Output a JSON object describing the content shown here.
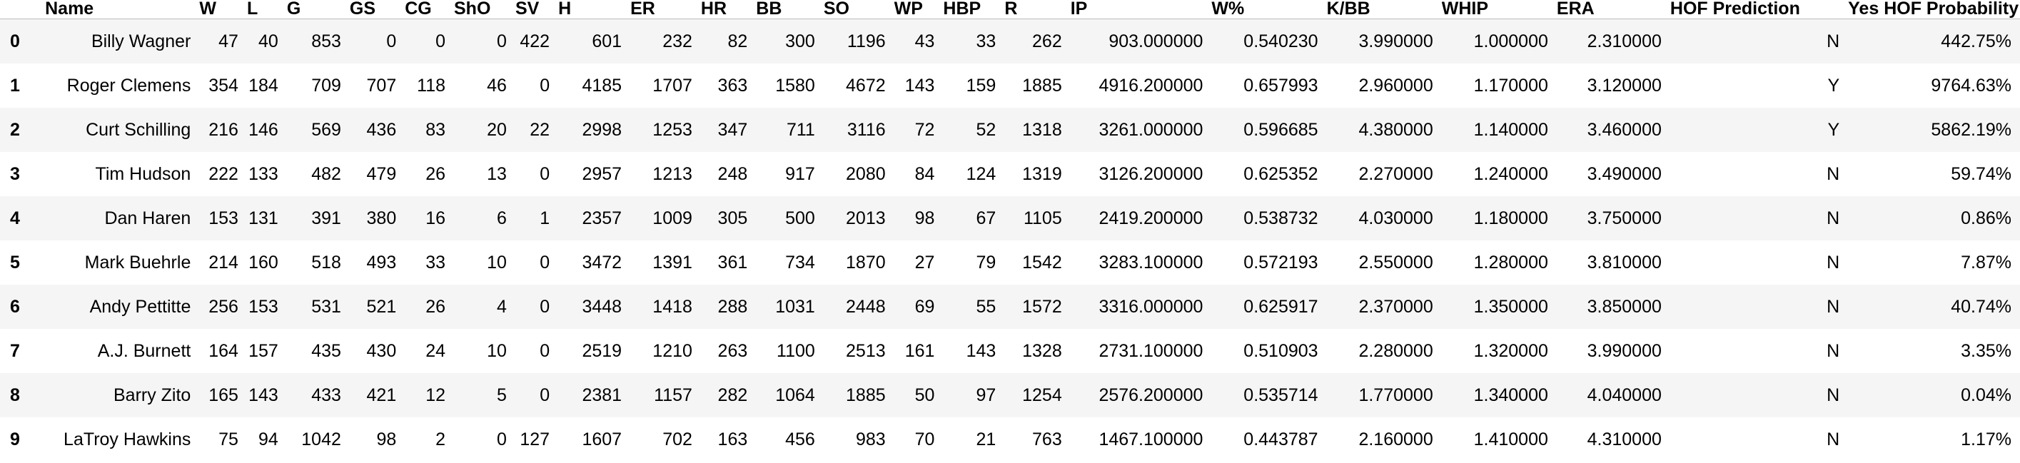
{
  "table": {
    "columns": [
      "",
      "Name",
      "W",
      "L",
      "G",
      "GS",
      "CG",
      "ShO",
      "SV",
      "H",
      "ER",
      "HR",
      "BB",
      "SO",
      "WP",
      "HBP",
      "R",
      "IP",
      "W%",
      "K/BB",
      "WHIP",
      "ERA",
      "HOF Prediction",
      "Yes HOF Probability"
    ],
    "rows": [
      {
        "index": "0",
        "cells": [
          "Billy Wagner",
          "47",
          "40",
          "853",
          "0",
          "0",
          "0",
          "422",
          "601",
          "232",
          "82",
          "300",
          "1196",
          "43",
          "33",
          "262",
          "903.000000",
          "0.540230",
          "3.990000",
          "1.000000",
          "2.310000",
          "N",
          "442.75%"
        ]
      },
      {
        "index": "1",
        "cells": [
          "Roger Clemens",
          "354",
          "184",
          "709",
          "707",
          "118",
          "46",
          "0",
          "4185",
          "1707",
          "363",
          "1580",
          "4672",
          "143",
          "159",
          "1885",
          "4916.200000",
          "0.657993",
          "2.960000",
          "1.170000",
          "3.120000",
          "Y",
          "9764.63%"
        ]
      },
      {
        "index": "2",
        "cells": [
          "Curt Schilling",
          "216",
          "146",
          "569",
          "436",
          "83",
          "20",
          "22",
          "2998",
          "1253",
          "347",
          "711",
          "3116",
          "72",
          "52",
          "1318",
          "3261.000000",
          "0.596685",
          "4.380000",
          "1.140000",
          "3.460000",
          "Y",
          "5862.19%"
        ]
      },
      {
        "index": "3",
        "cells": [
          "Tim Hudson",
          "222",
          "133",
          "482",
          "479",
          "26",
          "13",
          "0",
          "2957",
          "1213",
          "248",
          "917",
          "2080",
          "84",
          "124",
          "1319",
          "3126.200000",
          "0.625352",
          "2.270000",
          "1.240000",
          "3.490000",
          "N",
          "59.74%"
        ]
      },
      {
        "index": "4",
        "cells": [
          "Dan Haren",
          "153",
          "131",
          "391",
          "380",
          "16",
          "6",
          "1",
          "2357",
          "1009",
          "305",
          "500",
          "2013",
          "98",
          "67",
          "1105",
          "2419.200000",
          "0.538732",
          "4.030000",
          "1.180000",
          "3.750000",
          "N",
          "0.86%"
        ]
      },
      {
        "index": "5",
        "cells": [
          "Mark Buehrle",
          "214",
          "160",
          "518",
          "493",
          "33",
          "10",
          "0",
          "3472",
          "1391",
          "361",
          "734",
          "1870",
          "27",
          "79",
          "1542",
          "3283.100000",
          "0.572193",
          "2.550000",
          "1.280000",
          "3.810000",
          "N",
          "7.87%"
        ]
      },
      {
        "index": "6",
        "cells": [
          "Andy Pettitte",
          "256",
          "153",
          "531",
          "521",
          "26",
          "4",
          "0",
          "3448",
          "1418",
          "288",
          "1031",
          "2448",
          "69",
          "55",
          "1572",
          "3316.000000",
          "0.625917",
          "2.370000",
          "1.350000",
          "3.850000",
          "N",
          "40.74%"
        ]
      },
      {
        "index": "7",
        "cells": [
          "A.J. Burnett",
          "164",
          "157",
          "435",
          "430",
          "24",
          "10",
          "0",
          "2519",
          "1210",
          "263",
          "1100",
          "2513",
          "161",
          "143",
          "1328",
          "2731.100000",
          "0.510903",
          "2.280000",
          "1.320000",
          "3.990000",
          "N",
          "3.35%"
        ]
      },
      {
        "index": "8",
        "cells": [
          "Barry Zito",
          "165",
          "143",
          "433",
          "421",
          "12",
          "5",
          "0",
          "2381",
          "1157",
          "282",
          "1064",
          "1885",
          "50",
          "97",
          "1254",
          "2576.200000",
          "0.535714",
          "1.770000",
          "1.340000",
          "4.040000",
          "N",
          "0.04%"
        ]
      },
      {
        "index": "9",
        "cells": [
          "LaTroy Hawkins",
          "75",
          "94",
          "1042",
          "98",
          "2",
          "0",
          "127",
          "1607",
          "702",
          "163",
          "456",
          "983",
          "70",
          "21",
          "763",
          "1467.100000",
          "0.443787",
          "2.160000",
          "1.410000",
          "4.310000",
          "N",
          "1.17%"
        ]
      }
    ]
  }
}
